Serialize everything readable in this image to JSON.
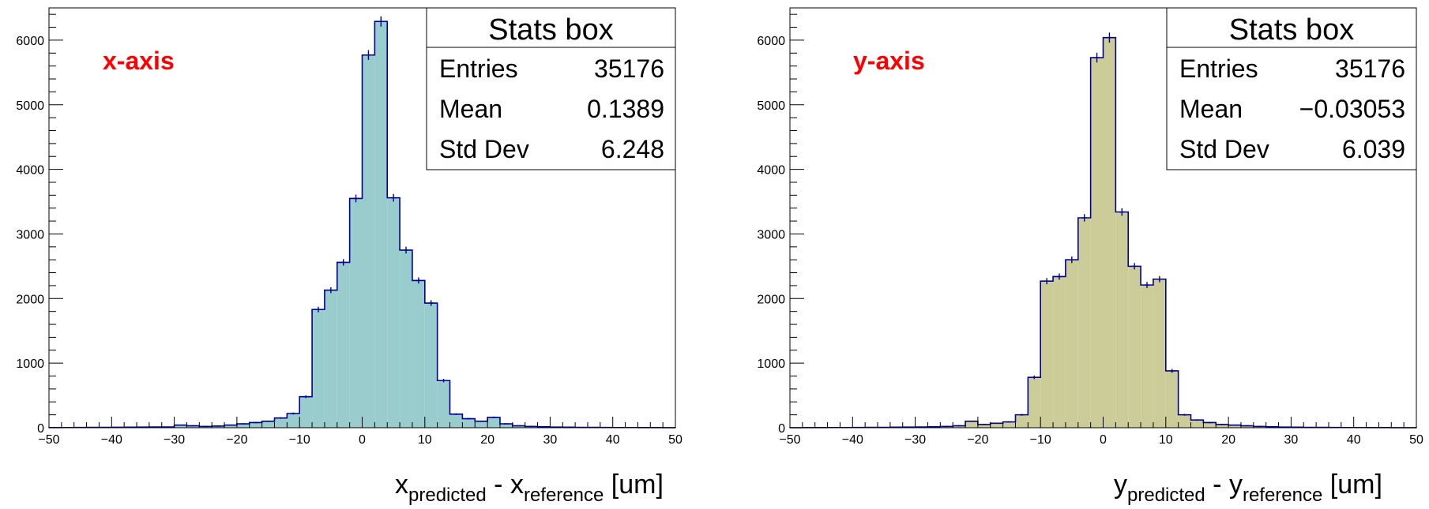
{
  "chart_data": [
    {
      "type": "bar",
      "label": "x-axis",
      "xlabel_main": "x",
      "xlabel_sub1": "predicted",
      "xlabel_mid": " - x",
      "xlabel_sub2": "reference",
      "xlabel_unit": "[um]",
      "xlim": [
        -50,
        50
      ],
      "ylim": [
        0,
        6500
      ],
      "xticks": [
        "−50",
        "−40",
        "−30",
        "−20",
        "−10",
        "0",
        "10",
        "20",
        "30",
        "40",
        "50"
      ],
      "yticks": [
        "0",
        "1000",
        "2000",
        "3000",
        "4000",
        "5000",
        "6000"
      ],
      "bin_width": 2,
      "bin_edges_start": -50,
      "values": [
        2,
        3,
        4,
        5,
        6,
        7,
        8,
        10,
        12,
        12,
        40,
        30,
        20,
        25,
        40,
        60,
        80,
        100,
        150,
        220,
        480,
        1830,
        2130,
        2560,
        3550,
        5770,
        6290,
        3560,
        2750,
        2280,
        1930,
        730,
        210,
        140,
        100,
        160,
        60,
        30,
        20,
        15,
        10,
        8,
        6,
        5,
        4,
        3,
        3,
        2,
        2,
        1
      ],
      "fill_color": "#99cccc",
      "line_color": "#000099",
      "stats": {
        "title": "Stats box",
        "rows": [
          {
            "label": "Entries",
            "value": "35176"
          },
          {
            "label": "Mean",
            "value": "0.1389"
          },
          {
            "label": "Std Dev",
            "value": "6.248"
          }
        ]
      }
    },
    {
      "type": "bar",
      "label": "y-axis",
      "xlabel_main": "y",
      "xlabel_sub1": "predicted",
      "xlabel_mid": " - y",
      "xlabel_sub2": "reference",
      "xlabel_unit": "[um]",
      "xlim": [
        -50,
        50
      ],
      "ylim": [
        0,
        6500
      ],
      "xticks": [
        "−50",
        "−40",
        "−30",
        "−20",
        "−10",
        "0",
        "10",
        "20",
        "30",
        "40",
        "50"
      ],
      "yticks": [
        "0",
        "1000",
        "2000",
        "3000",
        "4000",
        "5000",
        "6000"
      ],
      "bin_width": 2,
      "bin_edges_start": -50,
      "values": [
        1,
        2,
        2,
        3,
        3,
        4,
        5,
        6,
        8,
        10,
        12,
        15,
        20,
        30,
        100,
        50,
        70,
        90,
        200,
        780,
        2270,
        2340,
        2600,
        3250,
        5730,
        6040,
        3340,
        2500,
        2210,
        2300,
        880,
        200,
        120,
        80,
        50,
        40,
        30,
        20,
        15,
        10,
        8,
        6,
        5,
        4,
        3,
        3,
        2,
        2,
        1,
        1
      ],
      "fill_color": "#cccc99",
      "line_color": "#000099",
      "stats": {
        "title": "Stats box",
        "rows": [
          {
            "label": "Entries",
            "value": "35176"
          },
          {
            "label": "Mean",
            "value": "−0.03053"
          },
          {
            "label": "Std Dev",
            "value": "6.039"
          }
        ]
      }
    }
  ],
  "colors": {
    "label_red": "#ff0000",
    "axis": "#000000",
    "stats_border": "#000000"
  }
}
